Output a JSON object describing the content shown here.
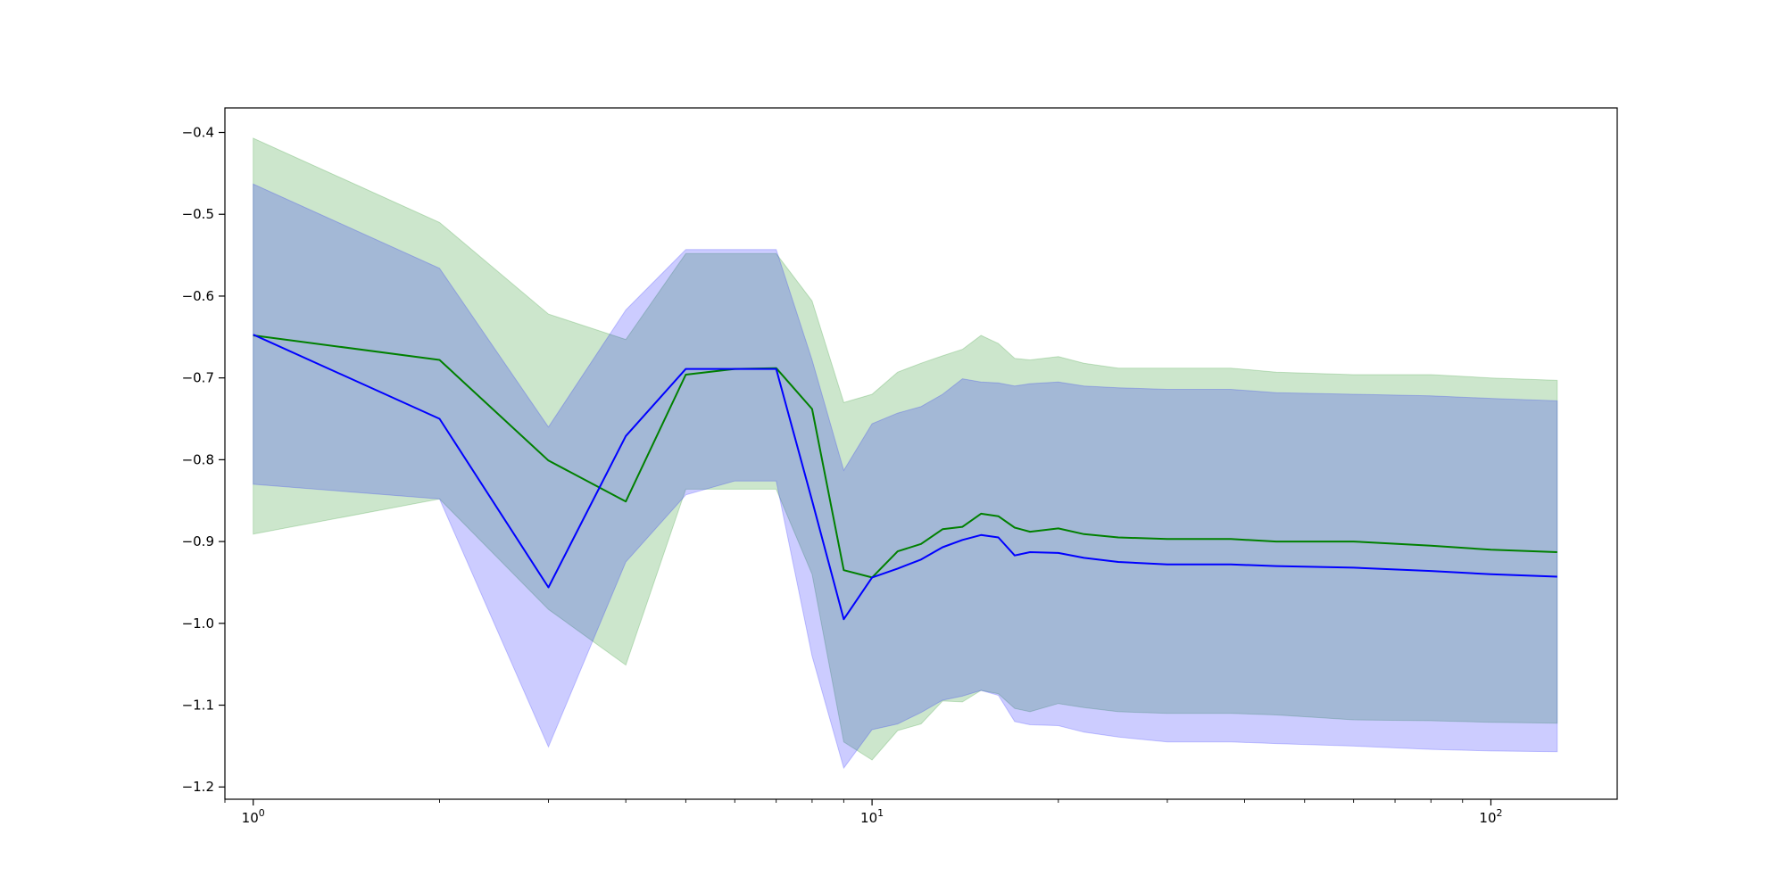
{
  "chart_data": {
    "type": "line",
    "title": "",
    "xlabel": "",
    "ylabel": "",
    "xscale": "log",
    "xlim": [
      0.9,
      160
    ],
    "ylim": [
      -1.215,
      -0.37
    ],
    "grid": false,
    "legend": "none",
    "x_ticks": [
      {
        "value": 1,
        "base": "10",
        "exp": "0"
      },
      {
        "value": 10,
        "base": "10",
        "exp": "1"
      },
      {
        "value": 100,
        "base": "10",
        "exp": "2"
      }
    ],
    "y_ticks": [
      {
        "value": -0.4,
        "label": "−0.4"
      },
      {
        "value": -0.5,
        "label": "−0.5"
      },
      {
        "value": -0.6,
        "label": "−0.6"
      },
      {
        "value": -0.7,
        "label": "−0.7"
      },
      {
        "value": -0.8,
        "label": "−0.8"
      },
      {
        "value": -0.9,
        "label": "−0.9"
      },
      {
        "value": -1.0,
        "label": "−1.0"
      },
      {
        "value": -1.1,
        "label": "−1.1"
      },
      {
        "value": -1.2,
        "label": "−1.2"
      }
    ],
    "series": [
      {
        "color": "#008000",
        "band_color": "#008000",
        "x": [
          1,
          2,
          3,
          4,
          5,
          6,
          7,
          8,
          9,
          10,
          11,
          12,
          13,
          14,
          15,
          16,
          17,
          18,
          20,
          22,
          25,
          30,
          38,
          45,
          60,
          80,
          100,
          128
        ],
        "y": [
          -0.648,
          -0.678,
          -0.801,
          -0.851,
          -0.696,
          -0.689,
          -0.688,
          -0.738,
          -0.935,
          -0.944,
          -0.912,
          -0.903,
          -0.885,
          -0.882,
          -0.866,
          -0.869,
          -0.883,
          -0.888,
          -0.884,
          -0.891,
          -0.895,
          -0.897,
          -0.897,
          -0.9,
          -0.9,
          -0.905,
          -0.91,
          -0.913
        ],
        "lower": [
          -0.891,
          -0.848,
          -0.983,
          -1.051,
          -0.836,
          -0.836,
          -0.836,
          -0.94,
          -1.145,
          -1.167,
          -1.131,
          -1.123,
          -1.095,
          -1.096,
          -1.082,
          -1.086,
          -1.104,
          -1.108,
          -1.098,
          -1.103,
          -1.108,
          -1.11,
          -1.11,
          -1.112,
          -1.118,
          -1.119,
          -1.121,
          -1.122
        ],
        "upper": [
          -0.407,
          -0.51,
          -0.622,
          -0.653,
          -0.548,
          -0.548,
          -0.548,
          -0.606,
          -0.73,
          -0.72,
          -0.693,
          -0.682,
          -0.673,
          -0.665,
          -0.648,
          -0.658,
          -0.676,
          -0.678,
          -0.674,
          -0.682,
          -0.688,
          -0.688,
          -0.688,
          -0.693,
          -0.696,
          -0.696,
          -0.7,
          -0.703
        ]
      },
      {
        "color": "#0000ff",
        "band_color": "#0000ff",
        "x": [
          1,
          2,
          3,
          4,
          5,
          6,
          7,
          8,
          9,
          10,
          11,
          12,
          13,
          14,
          15,
          16,
          17,
          18,
          20,
          22,
          25,
          30,
          38,
          45,
          60,
          80,
          100,
          128
        ],
        "y": [
          -0.647,
          -0.75,
          -0.956,
          -0.771,
          -0.689,
          -0.689,
          -0.689,
          -0.85,
          -0.995,
          -0.944,
          -0.933,
          -0.922,
          -0.907,
          -0.898,
          -0.892,
          -0.895,
          -0.917,
          -0.913,
          -0.914,
          -0.92,
          -0.925,
          -0.928,
          -0.928,
          -0.93,
          -0.932,
          -0.936,
          -0.94,
          -0.943
        ],
        "lower": [
          -0.83,
          -0.848,
          -1.151,
          -0.925,
          -0.843,
          -0.826,
          -0.826,
          -1.04,
          -1.177,
          -1.13,
          -1.123,
          -1.109,
          -1.094,
          -1.089,
          -1.082,
          -1.088,
          -1.12,
          -1.124,
          -1.125,
          -1.133,
          -1.139,
          -1.145,
          -1.145,
          -1.147,
          -1.15,
          -1.154,
          -1.156,
          -1.157
        ],
        "upper": [
          -0.463,
          -0.566,
          -0.76,
          -0.617,
          -0.543,
          -0.543,
          -0.543,
          -0.678,
          -0.813,
          -0.756,
          -0.743,
          -0.735,
          -0.72,
          -0.701,
          -0.705,
          -0.706,
          -0.71,
          -0.707,
          -0.705,
          -0.71,
          -0.712,
          -0.714,
          -0.714,
          -0.718,
          -0.72,
          -0.722,
          -0.725,
          -0.728
        ]
      }
    ]
  }
}
